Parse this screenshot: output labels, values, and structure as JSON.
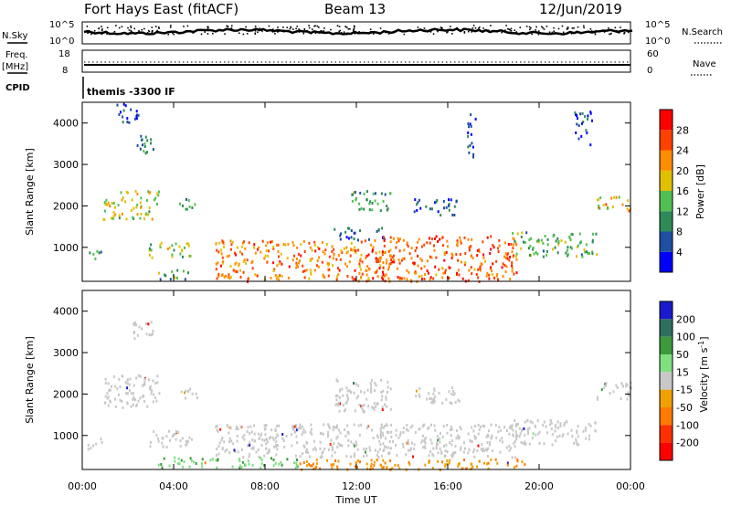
{
  "header": {
    "station": "Fort Hays East (fitACF)",
    "beam": "Beam 13",
    "date": "12/Jun/2019"
  },
  "summary": {
    "nsky_label": "N.Sky",
    "nsearch_label": "N.Search",
    "freq_label_line1": "Freq.",
    "freq_label_line2": "[MHz]",
    "nave_label": "Nave",
    "cpid_label": "CPID",
    "cpid_text": "themis -3300 IF",
    "noise_ticks_left": [
      "10^5",
      "10^0"
    ],
    "noise_ticks_right": [
      "10^5",
      "10^0"
    ],
    "freq_ticks": [
      "18",
      "8"
    ],
    "nave_ticks": [
      "60",
      "0"
    ]
  },
  "colors": {
    "power_scale": [
      "#0000ff",
      "#1e4fa0",
      "#2e8b57",
      "#50c050",
      "#e0c000",
      "#ff8c00",
      "#ff4000",
      "#ff0000"
    ],
    "velocity_scale": [
      "#1a1acc",
      "#2f6f5f",
      "#3c9a3c",
      "#7fe07f",
      "#c8c8c8",
      "#f0a000",
      "#ff7a00",
      "#ff3000",
      "#ff0000"
    ],
    "ground_scatter": "#c8c8c8"
  },
  "chart_data": [
    {
      "type": "heatmap",
      "name": "Power",
      "ylabel": "Slant Range [km]",
      "xlabel": "Time UT",
      "x_ticks": [
        "00:00",
        "04:00",
        "08:00",
        "12:00",
        "16:00",
        "20:00",
        "00:00"
      ],
      "xlim": [
        0,
        24
      ],
      "ylim": [
        180,
        4500
      ],
      "y_ticks": [
        1000,
        2000,
        3000,
        4000
      ],
      "colorbar": {
        "label": "Power [dB]",
        "ticks": [
          4,
          8,
          12,
          16,
          20,
          24,
          28
        ],
        "range": [
          0,
          32
        ]
      },
      "structures": [
        {
          "t": [
            0.2,
            0.9
          ],
          "r": [
            700,
            950
          ],
          "level": 12
        },
        {
          "t": [
            0.9,
            3.4
          ],
          "r": [
            1700,
            2400
          ],
          "level": 20
        },
        {
          "t": [
            2.2,
            3.1
          ],
          "r": [
            3300,
            3800
          ],
          "level": 12
        },
        {
          "t": [
            1.5,
            2.5
          ],
          "r": [
            4000,
            4500
          ],
          "level": 8
        },
        {
          "t": [
            4.2,
            5.0
          ],
          "r": [
            1900,
            2200
          ],
          "level": 14
        },
        {
          "t": [
            2.9,
            4.8
          ],
          "r": [
            750,
            1150
          ],
          "level": 18
        },
        {
          "t": [
            3.3,
            4.8
          ],
          "r": [
            250,
            500
          ],
          "level": 14
        },
        {
          "t": [
            5.8,
            13.5
          ],
          "r": [
            200,
            1200
          ],
          "level": 26
        },
        {
          "t": [
            11.0,
            13.2
          ],
          "r": [
            1200,
            1500
          ],
          "level": 10
        },
        {
          "t": [
            11.6,
            13.5
          ],
          "r": [
            1900,
            2400
          ],
          "level": 14
        },
        {
          "t": [
            14.5,
            16.5
          ],
          "r": [
            1800,
            2200
          ],
          "level": 10
        },
        {
          "t": [
            12.8,
            19.0
          ],
          "r": [
            200,
            1300
          ],
          "level": 28
        },
        {
          "t": [
            18.8,
            22.5
          ],
          "r": [
            800,
            1400
          ],
          "level": 16
        },
        {
          "t": [
            22.5,
            24.0
          ],
          "r": [
            1900,
            2300
          ],
          "level": 22
        },
        {
          "t": [
            16.8,
            17.2
          ],
          "r": [
            3200,
            4300
          ],
          "level": 8
        },
        {
          "t": [
            21.5,
            22.3
          ],
          "r": [
            3500,
            4300
          ],
          "level": 8
        }
      ]
    },
    {
      "type": "heatmap",
      "name": "Velocity",
      "ylabel": "Slant Range [km]",
      "xlabel": "Time UT",
      "x_ticks": [
        "00:00",
        "04:00",
        "08:00",
        "12:00",
        "16:00",
        "20:00",
        "00:00"
      ],
      "xlim": [
        0,
        24
      ],
      "ylim": [
        180,
        4500
      ],
      "y_ticks": [
        1000,
        2000,
        3000,
        4000
      ],
      "colorbar": {
        "label": "Velocity [m s-1]",
        "ticks": [
          "200",
          "100",
          "50",
          "15",
          "-15",
          "-50",
          "-100",
          "-200"
        ]
      },
      "structures": [
        {
          "t": [
            0.2,
            0.9
          ],
          "r": [
            700,
            950
          ],
          "vel": 0
        },
        {
          "t": [
            0.9,
            3.4
          ],
          "r": [
            1700,
            2500
          ],
          "vel": 0
        },
        {
          "t": [
            2.2,
            3.1
          ],
          "r": [
            3300,
            3800
          ],
          "vel": 0
        },
        {
          "t": [
            4.2,
            5.0
          ],
          "r": [
            1900,
            2200
          ],
          "vel": 0
        },
        {
          "t": [
            2.9,
            4.8
          ],
          "r": [
            750,
            1150
          ],
          "vel": 0
        },
        {
          "t": [
            3.3,
            6.0
          ],
          "r": [
            250,
            500
          ],
          "vel": 30
        },
        {
          "t": [
            5.8,
            13.5
          ],
          "r": [
            500,
            1300
          ],
          "vel": 0
        },
        {
          "t": [
            6.5,
            9.5
          ],
          "r": [
            250,
            500
          ],
          "vel": 30
        },
        {
          "t": [
            9.5,
            19.5
          ],
          "r": [
            200,
            450
          ],
          "vel": -30
        },
        {
          "t": [
            11.0,
            13.5
          ],
          "r": [
            1600,
            2400
          ],
          "vel": 0
        },
        {
          "t": [
            14.5,
            16.5
          ],
          "r": [
            1800,
            2200
          ],
          "vel": 0
        },
        {
          "t": [
            13.0,
            19.0
          ],
          "r": [
            500,
            1300
          ],
          "vel": 0
        },
        {
          "t": [
            18.8,
            22.5
          ],
          "r": [
            800,
            1400
          ],
          "vel": 0
        },
        {
          "t": [
            22.5,
            24.0
          ],
          "r": [
            1900,
            2300
          ],
          "vel": 0
        }
      ]
    }
  ]
}
